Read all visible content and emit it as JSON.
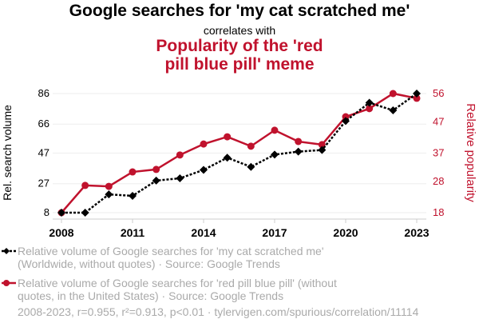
{
  "chart_data": {
    "type": "line",
    "title": "Google searches for 'my cat scratched me'",
    "connector": "correlates with",
    "title2": "Popularity of the 'red pill blue pill' meme",
    "x": [
      2008,
      2009,
      2010,
      2011,
      2012,
      2013,
      2014,
      2015,
      2016,
      2017,
      2018,
      2019,
      2020,
      2021,
      2022,
      2023
    ],
    "xticks": [
      "2008",
      "2011",
      "2014",
      "2017",
      "2020",
      "2023"
    ],
    "ylabel_left": "Rel. search volume",
    "ylabel_right": "Relative popularity",
    "yticks_left": [
      "8",
      "27",
      "47",
      "66",
      "86"
    ],
    "yticks_right": [
      "18",
      "28",
      "37",
      "47",
      "56"
    ],
    "ylim_left": [
      8,
      86
    ],
    "ylim_right": [
      18,
      56
    ],
    "grid": true,
    "series": [
      {
        "name": "Relative volume of Google searches for 'my cat scratched me' (Worldwide, without quotes) · Source: Google Trends",
        "axis": "left",
        "color": "#000000",
        "values": [
          8,
          8,
          20,
          19,
          29,
          30.5,
          36,
          44,
          38,
          46,
          48,
          49,
          68,
          80,
          75,
          86
        ]
      },
      {
        "name": "Relative volume of Google searches for 'red pill blue pill' (without quotes, in the United States) · Source: Google Trends",
        "axis": "right",
        "color": "#c0122d",
        "values": [
          18,
          26.7,
          26.4,
          31,
          31.8,
          36.4,
          39.9,
          42.2,
          39.2,
          44.3,
          40.7,
          39.7,
          48.6,
          51.2,
          56,
          54.5
        ]
      }
    ],
    "legend_placement": "bottom",
    "footer": "2008-2023, r=0.955, r²=0.913, p<0.01 · tylervigen.com/spurious/correlation/11114"
  }
}
